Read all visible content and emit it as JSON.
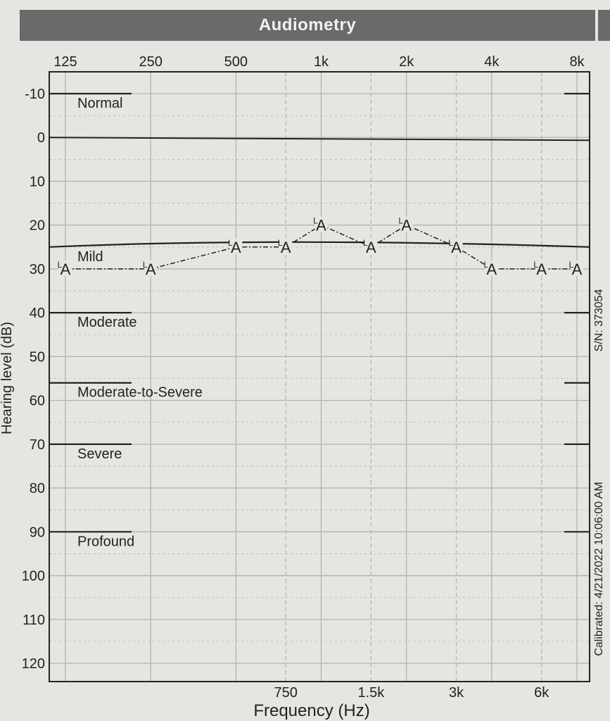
{
  "title": "Audiometry",
  "chart_data": {
    "type": "line",
    "title": "Audiometry",
    "xlabel": "Frequency (Hz)",
    "ylabel": "Hearing level (dB)",
    "x_scale": "log",
    "y_inverted": true,
    "ylim": [
      -15,
      125
    ],
    "top_ticks": [
      "125",
      "250",
      "500",
      "1k",
      "2k",
      "4k",
      "8k"
    ],
    "top_tick_values": [
      125,
      250,
      500,
      1000,
      2000,
      4000,
      8000
    ],
    "bottom_ticks": [
      "750",
      "1.5k",
      "3k",
      "6k"
    ],
    "bottom_tick_values": [
      750,
      1500,
      3000,
      6000
    ],
    "y_ticks": [
      "-10",
      "0",
      "10",
      "20",
      "30",
      "40",
      "50",
      "60",
      "70",
      "80",
      "90",
      "100",
      "110",
      "120"
    ],
    "y_tick_values": [
      -10,
      0,
      10,
      20,
      30,
      40,
      50,
      60,
      70,
      80,
      90,
      100,
      110,
      120
    ],
    "grid": true,
    "severity_bands": [
      {
        "name": "Normal",
        "from": -10
      },
      {
        "name": "Mild",
        "from": 25
      },
      {
        "name": "Moderate",
        "from": 40
      },
      {
        "name": "Moderate-to-Severe",
        "from": 56
      },
      {
        "name": "Severe",
        "from": 70
      },
      {
        "name": "Profound",
        "from": 90
      }
    ],
    "series": [
      {
        "marker": "A",
        "marker_superscript": "L",
        "line_style": "dash-dot",
        "x": [
          125,
          250,
          500,
          750,
          1000,
          1500,
          2000,
          3000,
          4000,
          6000,
          8000
        ],
        "y": [
          30,
          30,
          25,
          25,
          20,
          25,
          20,
          25,
          30,
          30,
          30
        ]
      }
    ]
  },
  "serial_number": "S/N: 373054",
  "calibrated": "Calibrated: 4/21/2022 10:06:00 AM",
  "colors": {
    "background": "#e6e5e2",
    "title_bar": "#6a6a6a",
    "grid": "#b3b3b3",
    "ink": "#222222"
  }
}
